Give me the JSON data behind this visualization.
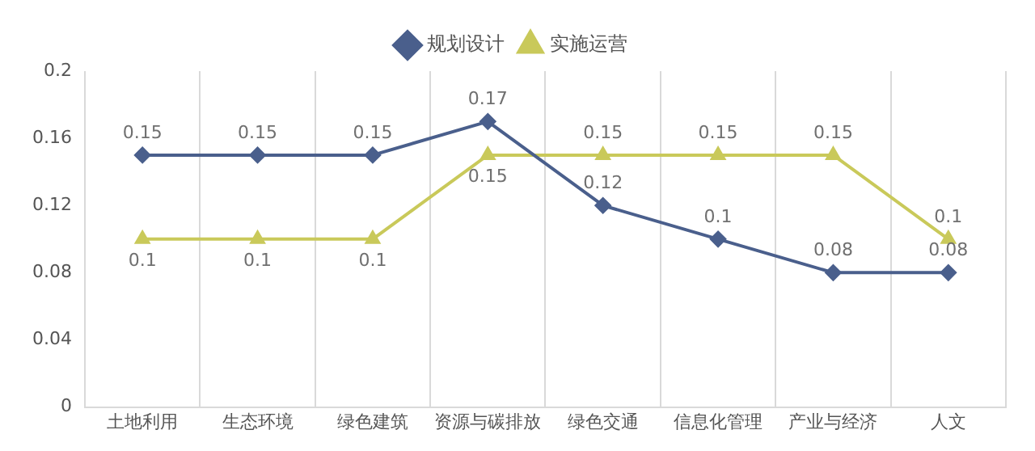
{
  "chart_data": {
    "type": "line",
    "categories": [
      "土地利用",
      "生态环境",
      "绿色建筑",
      "资源与碳排放",
      "绿色交通",
      "信息化管理",
      "产业与经济",
      "人文"
    ],
    "series": [
      {
        "name": "规划设计",
        "color": "#4a5f8c",
        "marker": "diamond",
        "values": [
          0.15,
          0.15,
          0.15,
          0.17,
          0.12,
          0.1,
          0.08,
          0.08
        ]
      },
      {
        "name": "实施运营",
        "color": "#c9c95a",
        "marker": "triangle",
        "values": [
          0.1,
          0.1,
          0.1,
          0.15,
          0.15,
          0.15,
          0.15,
          0.1
        ]
      }
    ],
    "ylim": [
      0,
      0.2
    ],
    "yticks": [
      0,
      0.04,
      0.08,
      0.12,
      0.16,
      0.2
    ],
    "grid": "x",
    "legend": "top",
    "data_labels": true,
    "line_style": "solid"
  }
}
